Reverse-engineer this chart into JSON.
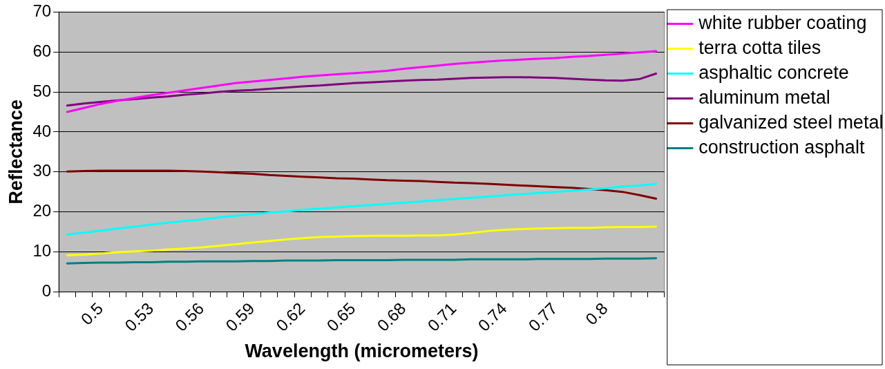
{
  "chart_data": {
    "type": "line",
    "xlabel": "Wavelength (micrometers)",
    "ylabel": "Reflectance",
    "categories": [
      null,
      null,
      "0.5",
      null,
      null,
      "0.53",
      null,
      null,
      "0.56",
      null,
      null,
      "0.59",
      null,
      null,
      "0.62",
      null,
      null,
      "0.65",
      null,
      null,
      "0.68",
      null,
      null,
      "0.71",
      null,
      null,
      "0.74",
      null,
      null,
      "0.77",
      null,
      null,
      "0.8",
      null,
      null,
      null
    ],
    "ylim": [
      0,
      70
    ],
    "yticks": [
      0,
      10,
      20,
      30,
      40,
      50,
      60,
      70
    ],
    "grid": "y",
    "legend": "right",
    "marker": "none",
    "series": [
      {
        "name": "white rubber coating",
        "color": "#ff00ff",
        "values": [
          45,
          46,
          47,
          47.8,
          48.5,
          49.2,
          49.8,
          50.4,
          51,
          51.6,
          52.2,
          52.6,
          53,
          53.4,
          53.8,
          54.1,
          54.4,
          54.7,
          55,
          55.3,
          55.8,
          56.2,
          56.6,
          57,
          57.3,
          57.6,
          57.9,
          58.1,
          58.3,
          58.5,
          58.8,
          59,
          59.3,
          59.6,
          59.9,
          60.2
        ]
      },
      {
        "name": "terra cotta tiles",
        "color": "#ffff00",
        "values": [
          9.1,
          9.3,
          9.6,
          9.9,
          10.1,
          10.3,
          10.6,
          10.8,
          11.1,
          11.5,
          11.9,
          12.3,
          12.7,
          13.1,
          13.4,
          13.7,
          13.8,
          13.9,
          14,
          14,
          14,
          14.1,
          14.1,
          14.3,
          14.7,
          15.2,
          15.5,
          15.7,
          15.8,
          15.9,
          16,
          16,
          16.1,
          16.2,
          16.2,
          16.3
        ]
      },
      {
        "name": "asphaltic concrete",
        "color": "#00ffff",
        "values": [
          14.3,
          14.8,
          15.3,
          15.8,
          16.3,
          16.8,
          17.3,
          17.7,
          18.1,
          18.6,
          19,
          19.4,
          19.8,
          20.1,
          20.5,
          20.8,
          21.1,
          21.4,
          21.7,
          22,
          22.3,
          22.6,
          22.9,
          23.2,
          23.5,
          23.8,
          24.1,
          24.4,
          24.7,
          25,
          25.3,
          25.6,
          25.9,
          26.3,
          26.6,
          27
        ]
      },
      {
        "name": "aluminum metal",
        "color": "#800080",
        "values": [
          46.6,
          47.1,
          47.5,
          47.9,
          48.2,
          48.6,
          48.9,
          49.3,
          49.6,
          50,
          50.3,
          50.5,
          50.8,
          51.1,
          51.4,
          51.6,
          51.9,
          52.2,
          52.4,
          52.6,
          52.8,
          53,
          53.1,
          53.3,
          53.5,
          53.6,
          53.7,
          53.7,
          53.6,
          53.5,
          53.3,
          53.1,
          52.9,
          52.8,
          53.2,
          54.6
        ]
      },
      {
        "name": "galvanized steel metal",
        "color": "#800000",
        "values": [
          30.1,
          30.2,
          30.3,
          30.3,
          30.3,
          30.3,
          30.3,
          30.2,
          30.1,
          29.9,
          29.7,
          29.5,
          29.2,
          29,
          28.8,
          28.6,
          28.4,
          28.3,
          28.1,
          27.9,
          27.8,
          27.7,
          27.5,
          27.3,
          27.2,
          27,
          26.8,
          26.6,
          26.4,
          26.2,
          26,
          25.7,
          25.4,
          25,
          24.2,
          23.3
        ]
      },
      {
        "name": "construction asphalt",
        "color": "#008080",
        "values": [
          7.1,
          7.2,
          7.3,
          7.3,
          7.4,
          7.4,
          7.5,
          7.5,
          7.6,
          7.6,
          7.6,
          7.7,
          7.7,
          7.8,
          7.8,
          7.8,
          7.9,
          7.9,
          7.9,
          7.9,
          8,
          8,
          8,
          8,
          8.1,
          8.1,
          8.1,
          8.1,
          8.2,
          8.2,
          8.2,
          8.2,
          8.3,
          8.3,
          8.3,
          8.4
        ]
      }
    ]
  }
}
